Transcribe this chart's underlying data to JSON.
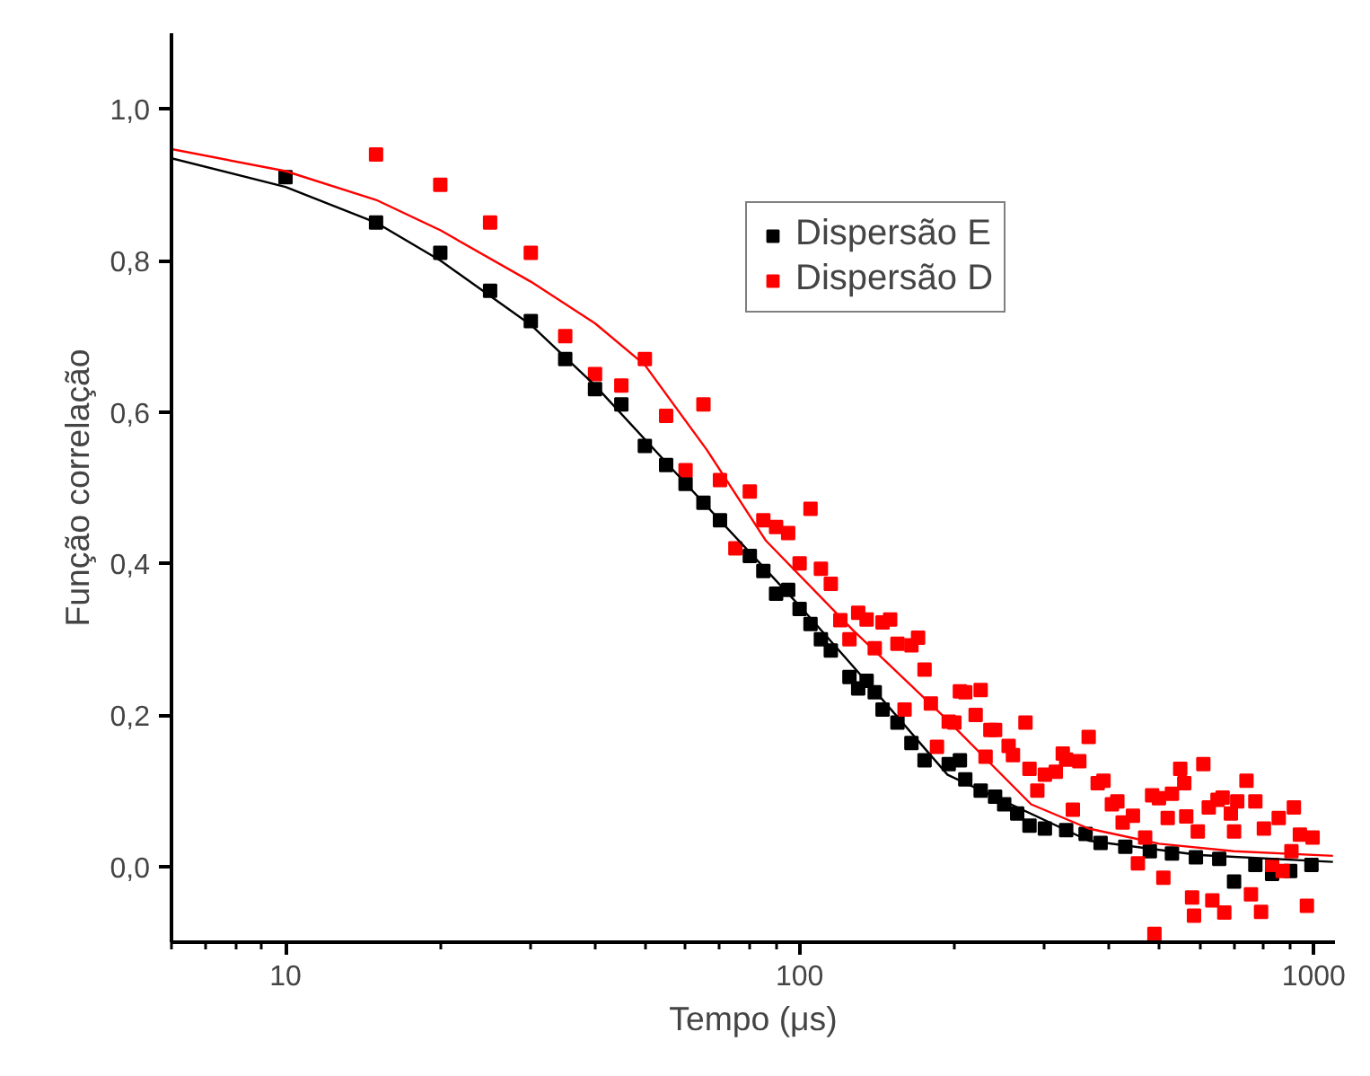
{
  "chart_data": {
    "type": "scatter",
    "xlabel": "Tempo (μs)",
    "ylabel": "Função correlação",
    "log": "x",
    "legend": "top right",
    "grid": false,
    "xlim": [
      6,
      1100
    ],
    "ylim": [
      -0.1,
      1.1
    ],
    "xticks": [
      {
        "value": 6,
        "label": null
      },
      {
        "value": 7,
        "label": null
      },
      {
        "value": 8,
        "label": null
      },
      {
        "value": 9,
        "label": null
      },
      10,
      {
        "value": 20,
        "label": null
      },
      {
        "value": 30,
        "label": null
      },
      {
        "value": 40,
        "label": null
      },
      {
        "value": 50,
        "label": null
      },
      {
        "value": 60,
        "label": null
      },
      {
        "value": 70,
        "label": null
      },
      {
        "value": 80,
        "label": null
      },
      {
        "value": 90,
        "label": null
      },
      100,
      {
        "value": 200,
        "label": null
      },
      {
        "value": 300,
        "label": null
      },
      {
        "value": 400,
        "label": null
      },
      {
        "value": 500,
        "label": null
      },
      {
        "value": 600,
        "label": null
      },
      {
        "value": 700,
        "label": null
      },
      {
        "value": 800,
        "label": null
      },
      {
        "value": 900,
        "label": null
      },
      1000
    ],
    "yticks": [
      {
        "value": 0.0,
        "label": "0,0"
      },
      {
        "value": 0.2,
        "label": "0,2"
      },
      {
        "value": 0.4,
        "label": "0,4"
      },
      {
        "value": 0.6,
        "label": "0,6"
      },
      {
        "value": 0.8,
        "label": "0,8"
      },
      {
        "value": 1.0,
        "label": "1,0"
      }
    ],
    "series": [
      {
        "name": "Dispersão E",
        "color": "#000000",
        "marker": "square",
        "x": [
          10,
          15,
          20,
          25,
          30,
          35,
          40,
          45,
          50,
          55,
          60,
          65,
          70,
          80,
          85,
          90,
          95,
          100,
          105,
          110,
          115,
          125,
          130,
          135,
          140,
          145,
          155,
          165,
          175,
          195,
          205,
          210,
          225,
          240,
          250,
          265,
          280,
          300,
          330,
          360,
          385,
          430,
          480,
          530,
          590,
          655,
          700,
          770,
          830,
          900,
          990
        ],
        "values": [
          0.91,
          0.85,
          0.81,
          0.76,
          0.72,
          0.67,
          0.63,
          0.61,
          0.555,
          0.53,
          0.505,
          0.48,
          0.457,
          0.41,
          0.39,
          0.36,
          0.365,
          0.34,
          0.32,
          0.3,
          0.285,
          0.25,
          0.235,
          0.245,
          0.23,
          0.207,
          0.19,
          0.163,
          0.14,
          0.135,
          0.14,
          0.115,
          0.1,
          0.092,
          0.082,
          0.07,
          0.054,
          0.05,
          0.048,
          0.043,
          0.031,
          0.026,
          0.02,
          0.017,
          0.012,
          0.01,
          -0.02,
          0.002,
          -0.01,
          -0.006,
          0.002
        ]
      },
      {
        "name": "Dispersão D",
        "color": "#ff0000",
        "marker": "square",
        "x": [
          15,
          20,
          25,
          30,
          35,
          40,
          45,
          50,
          55,
          60,
          65,
          70,
          75,
          80,
          85,
          90,
          95,
          100,
          105,
          110,
          115,
          120,
          125,
          130,
          135,
          140,
          145,
          150,
          155,
          160,
          165,
          170,
          175,
          180,
          185,
          195,
          200,
          205,
          210,
          220,
          225,
          230,
          235,
          240,
          255,
          260,
          275,
          280,
          290,
          300,
          315,
          325,
          330,
          340,
          350,
          365,
          380,
          390,
          405,
          415,
          425,
          445,
          455,
          470,
          485,
          490,
          500,
          510,
          520,
          530,
          550,
          560,
          565,
          580,
          585,
          595,
          610,
          625,
          635,
          650,
          665,
          670,
          690,
          700,
          710,
          740,
          755,
          770,
          790,
          800,
          830,
          855,
          870,
          905,
          915,
          940,
          970,
          995
        ],
        "values": [
          0.94,
          0.9,
          0.85,
          0.81,
          0.7,
          0.65,
          0.635,
          0.67,
          0.595,
          0.523,
          0.61,
          0.51,
          0.42,
          0.495,
          0.457,
          0.448,
          0.44,
          0.4,
          0.472,
          0.393,
          0.373,
          0.325,
          0.3,
          0.335,
          0.326,
          0.288,
          0.322,
          0.326,
          0.294,
          0.207,
          0.292,
          0.302,
          0.26,
          0.215,
          0.158,
          0.191,
          0.19,
          0.231,
          0.23,
          0.2,
          0.233,
          0.145,
          0.18,
          0.18,
          0.159,
          0.147,
          0.19,
          0.129,
          0.1,
          0.121,
          0.125,
          0.149,
          0.141,
          0.075,
          0.139,
          0.171,
          0.11,
          0.113,
          0.082,
          0.086,
          0.058,
          0.067,
          0.004,
          0.038,
          0.094,
          -0.089,
          0.09,
          -0.015,
          0.064,
          0.096,
          0.129,
          0.11,
          0.066,
          -0.041,
          -0.065,
          0.046,
          0.135,
          0.078,
          -0.045,
          0.088,
          0.091,
          -0.061,
          0.07,
          0.046,
          0.086,
          0.113,
          -0.037,
          0.086,
          -0.06,
          0.05,
          0.002,
          0.064,
          -0.006,
          0.02,
          0.078,
          0.042,
          -0.052,
          0.038
        ]
      },
      {
        "type": "line",
        "color": "#000000",
        "marker": "none",
        "x": [
          6,
          10,
          15,
          20,
          30,
          40,
          57,
          100,
          145,
          194,
          365,
          600,
          1090
        ],
        "values": [
          0.935,
          0.897,
          0.85,
          0.8,
          0.715,
          0.635,
          0.522,
          0.344,
          0.22,
          0.121,
          0.034,
          0.015,
          0.006
        ]
      },
      {
        "type": "line",
        "color": "#ff0000",
        "marker": "none",
        "x": [
          6,
          10,
          15,
          20,
          30,
          40,
          50,
          66,
          86,
          127,
          194,
          282,
          365,
          500,
          700,
          1090
        ],
        "values": [
          0.947,
          0.918,
          0.88,
          0.84,
          0.772,
          0.717,
          0.662,
          0.55,
          0.43,
          0.312,
          0.193,
          0.082,
          0.05,
          0.03,
          0.02,
          0.014
        ]
      }
    ]
  }
}
